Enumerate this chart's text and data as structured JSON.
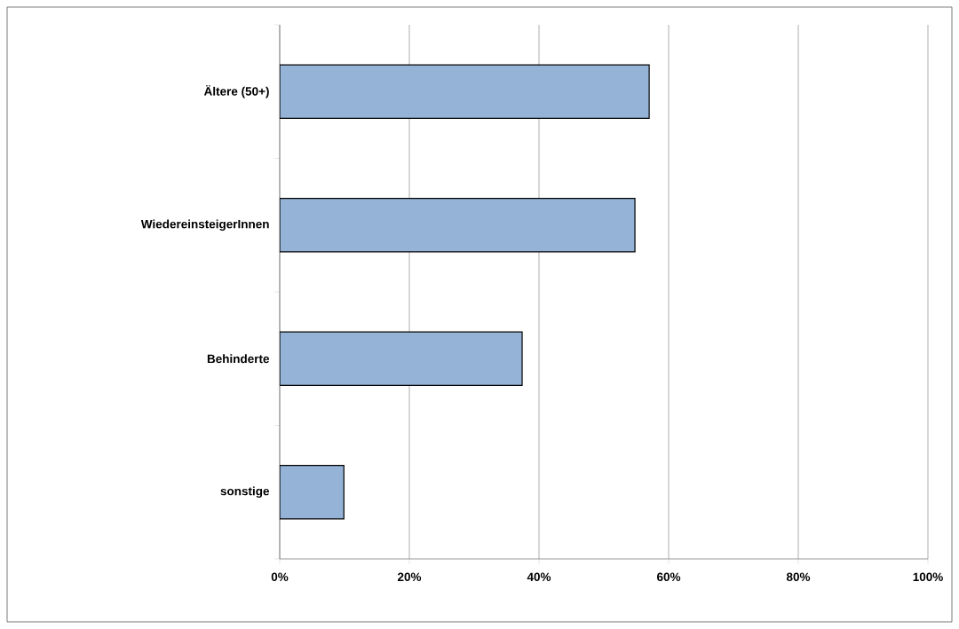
{
  "chart_data": {
    "type": "bar",
    "orientation": "horizontal",
    "categories": [
      "Ältere (50+)",
      "WiedereinsteigerInnen",
      "Behinderte",
      "sonstige"
    ],
    "values": [
      57.0,
      54.8,
      37.4,
      9.9
    ],
    "color": "#95b3d7",
    "xlim": [
      0,
      100
    ],
    "xticks": [
      {
        "value": 0,
        "label": "0%"
      },
      {
        "value": 20,
        "label": "20%"
      },
      {
        "value": 40,
        "label": "40%"
      },
      {
        "value": 60,
        "label": "60%"
      },
      {
        "value": 80,
        "label": "80%"
      },
      {
        "value": 100,
        "label": "100%"
      }
    ],
    "grid": "x"
  }
}
